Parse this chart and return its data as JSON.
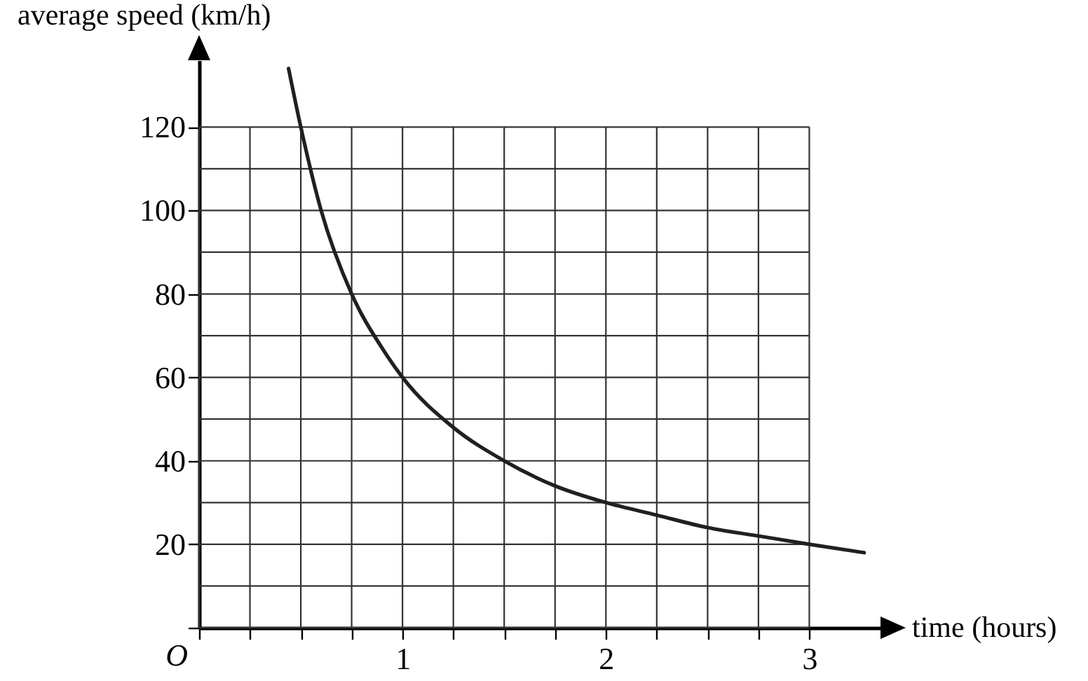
{
  "chart_data": {
    "type": "line",
    "xlabel": "time (hours)",
    "ylabel": "average speed (km/h)",
    "annotations": [
      "O"
    ],
    "x": [
      0.44,
      0.5,
      0.6,
      0.75,
      0.9,
      1,
      1.25,
      1.5,
      1.75,
      2,
      2.25,
      2.5,
      2.75,
      3,
      3.27
    ],
    "series": [
      {
        "color": "#231f20",
        "values": [
          134,
          120,
          100,
          80,
          67,
          60,
          48,
          40,
          34,
          30,
          27,
          24,
          22,
          20,
          18
        ]
      }
    ],
    "xlim": [
      0,
      3.35
    ],
    "ylim": [
      0,
      136
    ],
    "xticks": [
      {
        "value": 0,
        "label": null
      },
      {
        "value": 0.25,
        "label": null
      },
      {
        "value": 0.5,
        "label": null
      },
      {
        "value": 0.75,
        "label": null
      },
      1,
      {
        "value": 1.25,
        "label": null
      },
      {
        "value": 1.5,
        "label": null
      },
      {
        "value": 1.75,
        "label": null
      },
      2,
      {
        "value": 2.25,
        "label": null
      },
      {
        "value": 2.5,
        "label": null
      },
      {
        "value": 2.75,
        "label": null
      },
      3
    ],
    "yticks": [
      {
        "value": 0,
        "label": null
      },
      {
        "value": 10,
        "label": null
      },
      20,
      {
        "value": 30,
        "label": null
      },
      40,
      {
        "value": 50,
        "label": null
      },
      60,
      {
        "value": 70,
        "label": null
      },
      80,
      {
        "value": 90,
        "label": null
      },
      100,
      {
        "value": 110,
        "label": null
      },
      120
    ],
    "grid": true,
    "line_style": "solid"
  }
}
